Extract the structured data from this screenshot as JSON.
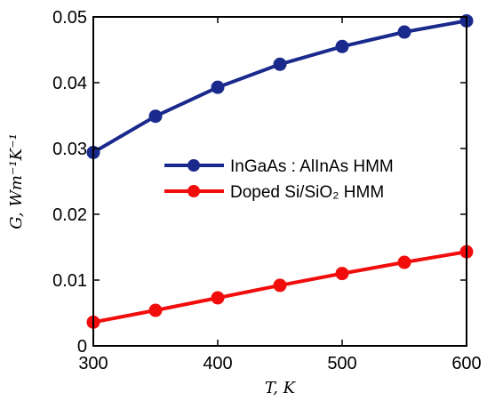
{
  "chart_data": {
    "type": "line",
    "x": [
      300,
      350,
      400,
      450,
      500,
      550,
      600
    ],
    "xlim": [
      300,
      600
    ],
    "ylim": [
      0,
      0.05
    ],
    "xticks": [
      300,
      400,
      500,
      600
    ],
    "yticks": [
      0,
      0.01,
      0.02,
      0.03,
      0.04,
      0.05
    ],
    "xtick_labels": [
      "300",
      "400",
      "500",
      "600"
    ],
    "ytick_labels": [
      "0",
      "0.01",
      "0.02",
      "0.03",
      "0.04",
      "0.05"
    ],
    "xlabel": "T, K",
    "ylabel": "G, Wm⁻¹K⁻¹",
    "grid": false,
    "legend_position": "center-right",
    "series": [
      {
        "name": "InGaAs : AlInAs HMM",
        "color": "#1a2a8c",
        "values": [
          0.0294,
          0.0349,
          0.0393,
          0.0428,
          0.0455,
          0.0477,
          0.0494
        ]
      },
      {
        "name": "Doped Si/SiO₂ HMM",
        "color": "#f20d0d",
        "values": [
          0.0036,
          0.0054,
          0.0073,
          0.0092,
          0.011,
          0.0127,
          0.0143
        ]
      }
    ]
  }
}
